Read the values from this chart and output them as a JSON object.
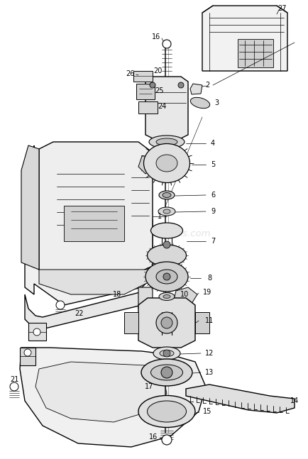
{
  "bg_color": "#ffffff",
  "line_color": "#000000",
  "gray_fill": "#e8e8e8",
  "dark_fill": "#555555",
  "mid_fill": "#aaaaaa",
  "watermark": "ereplacementparts.com",
  "watermark_color": "#cccccc",
  "figw": 4.35,
  "figh": 6.47,
  "dpi": 100,
  "xlim": [
    0,
    435
  ],
  "ylim": [
    0,
    647
  ]
}
